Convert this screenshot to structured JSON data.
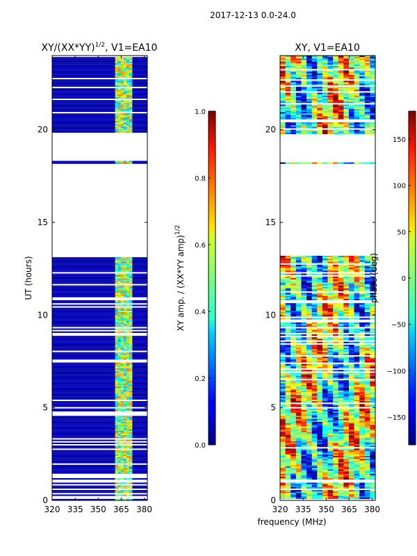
{
  "figure": {
    "suptitle": "2017-12-13 0.0-24.0",
    "xlabel": "frequency (MHz)"
  },
  "chart_data": [
    {
      "type": "heatmap",
      "title": "XY/(XX*YY)",
      "title_superscript": "1/2",
      "title_suffix": ", V1=EA10",
      "xlabel": "",
      "ylabel": "UT (hours)",
      "xlim": [
        320,
        382
      ],
      "ylim": [
        0,
        24
      ],
      "xticks": [
        "320",
        "335",
        "350",
        "365",
        "380"
      ],
      "yticks": [
        "0",
        "5",
        "10",
        "15",
        "20"
      ],
      "colorbar": {
        "label": "XY amp. / (XX*YY amp)",
        "label_superscript": "1/2",
        "range": [
          0.0,
          1.0
        ],
        "ticks": [
          "0.0",
          "0.2",
          "0.4",
          "0.6",
          "0.8",
          "1.0"
        ],
        "colormap": "jet"
      },
      "data_gaps_hours": [
        [
          0.9,
          1.05
        ],
        [
          13.2,
          18.1
        ],
        [
          18.3,
          19.75
        ]
      ],
      "bright_band_mhz": [
        361,
        372
      ],
      "background_value": 0.05
    },
    {
      "type": "heatmap",
      "title": "XY, V1=EA10",
      "xlabel": "frequency (MHz)",
      "ylabel": "",
      "xlim": [
        320,
        382
      ],
      "ylim": [
        0,
        24
      ],
      "xticks": [
        "320",
        "335",
        "350",
        "365",
        "380"
      ],
      "yticks": [
        "0",
        "5",
        "10",
        "15",
        "20"
      ],
      "colorbar": {
        "label": "phase (deg)",
        "range": [
          -180,
          180
        ],
        "ticks": [
          "-150",
          "-100",
          "-50",
          "0",
          "50",
          "100",
          "150"
        ],
        "colormap": "jet"
      },
      "data_gaps_hours": [
        [
          0.9,
          1.05
        ],
        [
          13.2,
          18.1
        ],
        [
          18.3,
          19.75
        ]
      ]
    }
  ]
}
